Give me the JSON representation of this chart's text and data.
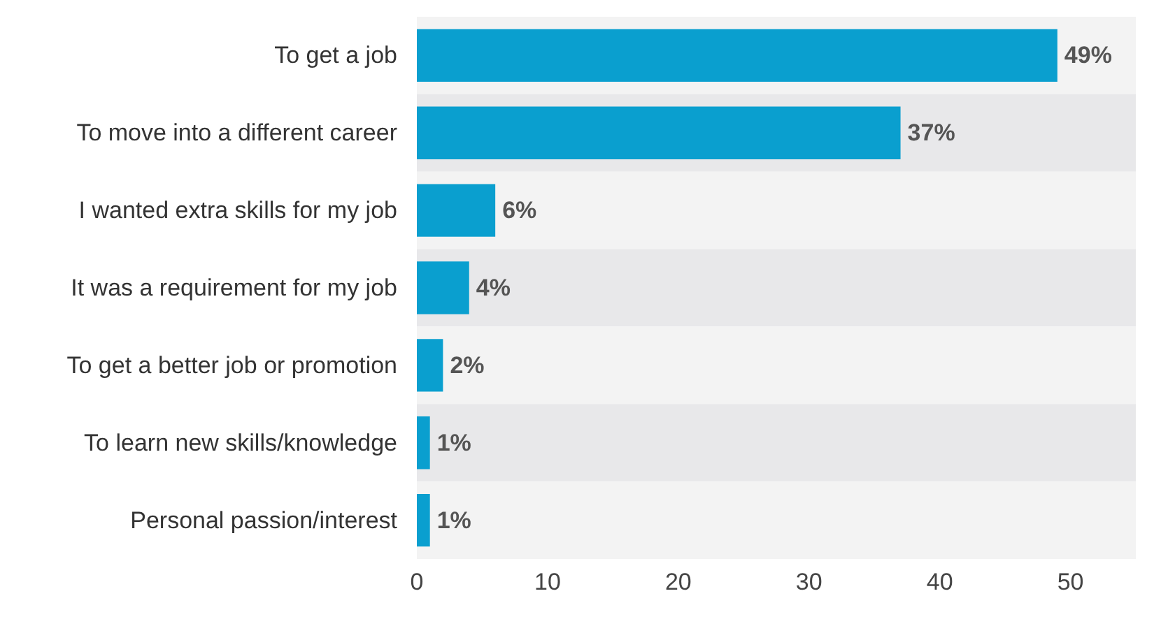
{
  "chart_data": {
    "type": "bar",
    "orientation": "horizontal",
    "categories": [
      "To get a job",
      "To move into a different career",
      "I wanted extra skills for my job",
      "It was a requirement for my job",
      "To get a better job or promotion",
      "To learn new skills/knowledge",
      "Personal passion/interest"
    ],
    "values": [
      49,
      37,
      6,
      4,
      2,
      1,
      1
    ],
    "value_labels": [
      "49%",
      "37%",
      "6%",
      "4%",
      "2%",
      "1%",
      "1%"
    ],
    "color": "#0a9fcf",
    "xlim": [
      0,
      55
    ],
    "xticks": [
      0,
      10,
      20,
      30,
      40,
      50
    ]
  }
}
